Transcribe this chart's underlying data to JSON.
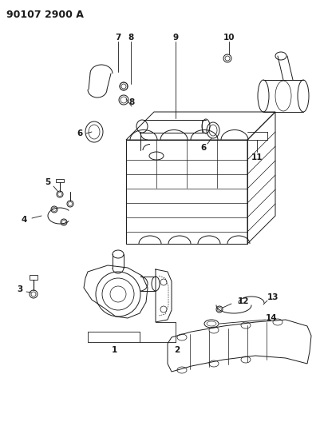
{
  "title": "90107 2900 A",
  "bg_color": "#ffffff",
  "line_color": "#1a1a1a",
  "title_fontsize": 9,
  "label_fontsize": 7.5,
  "fig_width": 4.02,
  "fig_height": 5.33,
  "dpi": 100
}
